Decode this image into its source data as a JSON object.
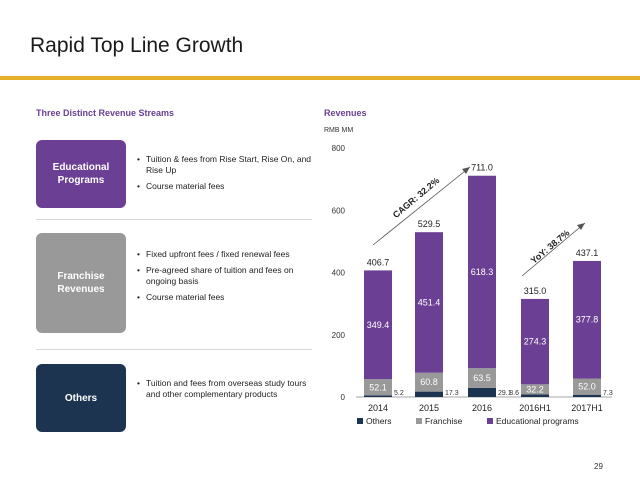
{
  "slide": {
    "title": "Rapid Top Line Growth",
    "page_number": "29"
  },
  "left_panel": {
    "heading": "Three Distinct Revenue Streams",
    "streams": [
      {
        "label": "Educational Programs",
        "color": "#6a3f94",
        "bullets": [
          "Tuition & fees from Rise Start, Rise On, and Rise Up",
          "Course material fees"
        ]
      },
      {
        "label": "Franchise Revenues",
        "color": "#999999",
        "bullets": [
          "Fixed upfront fees / fixed renewal fees",
          "Pre-agreed share of tuition and fees on ongoing basis",
          "Course material fees"
        ]
      },
      {
        "label": "Others",
        "color": "#1c3450",
        "bullets": [
          "Tuition and fees from overseas study tours and other complementary products"
        ]
      }
    ]
  },
  "chart_data": {
    "type": "bar",
    "stacked": true,
    "title": "Revenues",
    "units": "RMB MM",
    "categories": [
      "2014",
      "2015",
      "2016",
      "2016H1",
      "2017H1"
    ],
    "ylim": [
      0,
      800
    ],
    "yticks": [
      "0",
      "200",
      "400",
      "600",
      "800"
    ],
    "series": [
      {
        "name": "Others",
        "color": "#1c3450",
        "values": [
          5.2,
          17.3,
          29.1,
          8.6,
          7.3
        ],
        "labels": [
          "5.2",
          "17.3",
          "29.1",
          "8.6",
          "7.3"
        ]
      },
      {
        "name": "Franchise",
        "color": "#999999",
        "values": [
          52.1,
          60.8,
          63.5,
          32.2,
          52.0
        ],
        "labels": [
          "52.1",
          "60.8",
          "63.5",
          "32.2",
          "52.0"
        ]
      },
      {
        "name": "Educational programs",
        "color": "#6a3f94",
        "values": [
          349.4,
          451.4,
          618.3,
          274.3,
          377.8
        ],
        "labels": [
          "349.4",
          "451.4",
          "618.3",
          "274.3",
          "377.8"
        ]
      }
    ],
    "totals": [
      "406.7",
      "529.5",
      "711.0",
      "315.0",
      "437.1"
    ],
    "annotations": [
      "CAGR: 32.2%",
      "YoY: 38.7%"
    ],
    "legend_position": "bottom"
  },
  "colors": {
    "accent_rule": "#e6b12a",
    "heading": "#6a3f94"
  }
}
